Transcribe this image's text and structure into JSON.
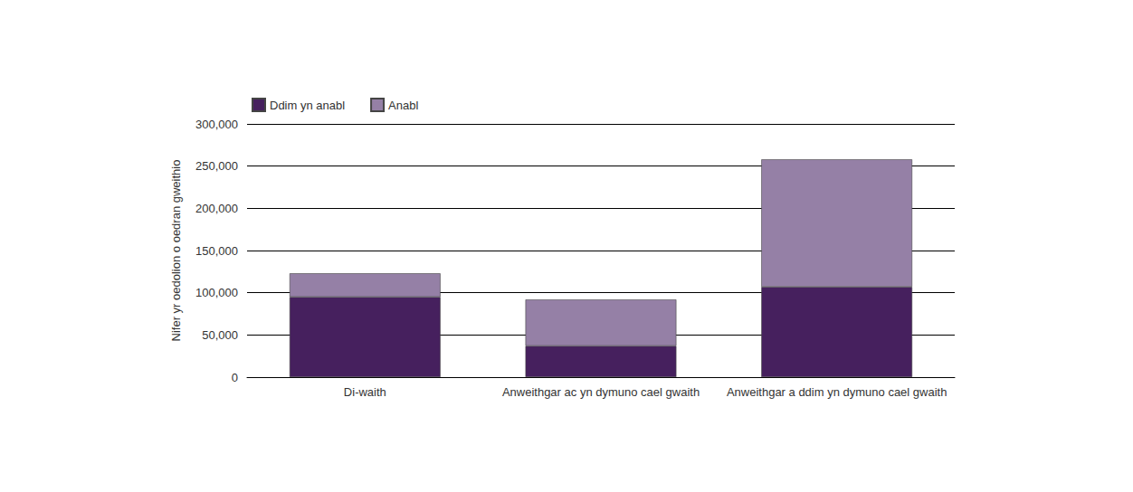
{
  "chart_data": {
    "type": "bar",
    "stacked": true,
    "grid": true,
    "legend": "top-left",
    "y_label": "Nifer yr oedolion o oedran gweithio",
    "categories": [
      "Di-waith",
      "Anweithgar ac yn dymuno cael gwaith",
      "Anweithgar a ddim yn dymuno cael gwaith"
    ],
    "series": [
      {
        "name": "Ddim yn anabl",
        "color": "#46205e",
        "values": [
          95000,
          37000,
          107000
        ]
      },
      {
        "name": "Anabl",
        "color": "#9580a6",
        "values": [
          28000,
          55000,
          151000
        ]
      }
    ],
    "ylim": [
      0,
      300000
    ],
    "yticks": [
      0,
      {
        "value": 50000,
        "label": "50,000"
      },
      {
        "value": 100000,
        "label": "100,000"
      },
      {
        "value": 150000,
        "label": "150,000"
      },
      {
        "value": 200000,
        "label": "200,000"
      },
      {
        "value": 250000,
        "label": "250,000"
      },
      {
        "value": 300000,
        "label": "300,000"
      }
    ]
  }
}
